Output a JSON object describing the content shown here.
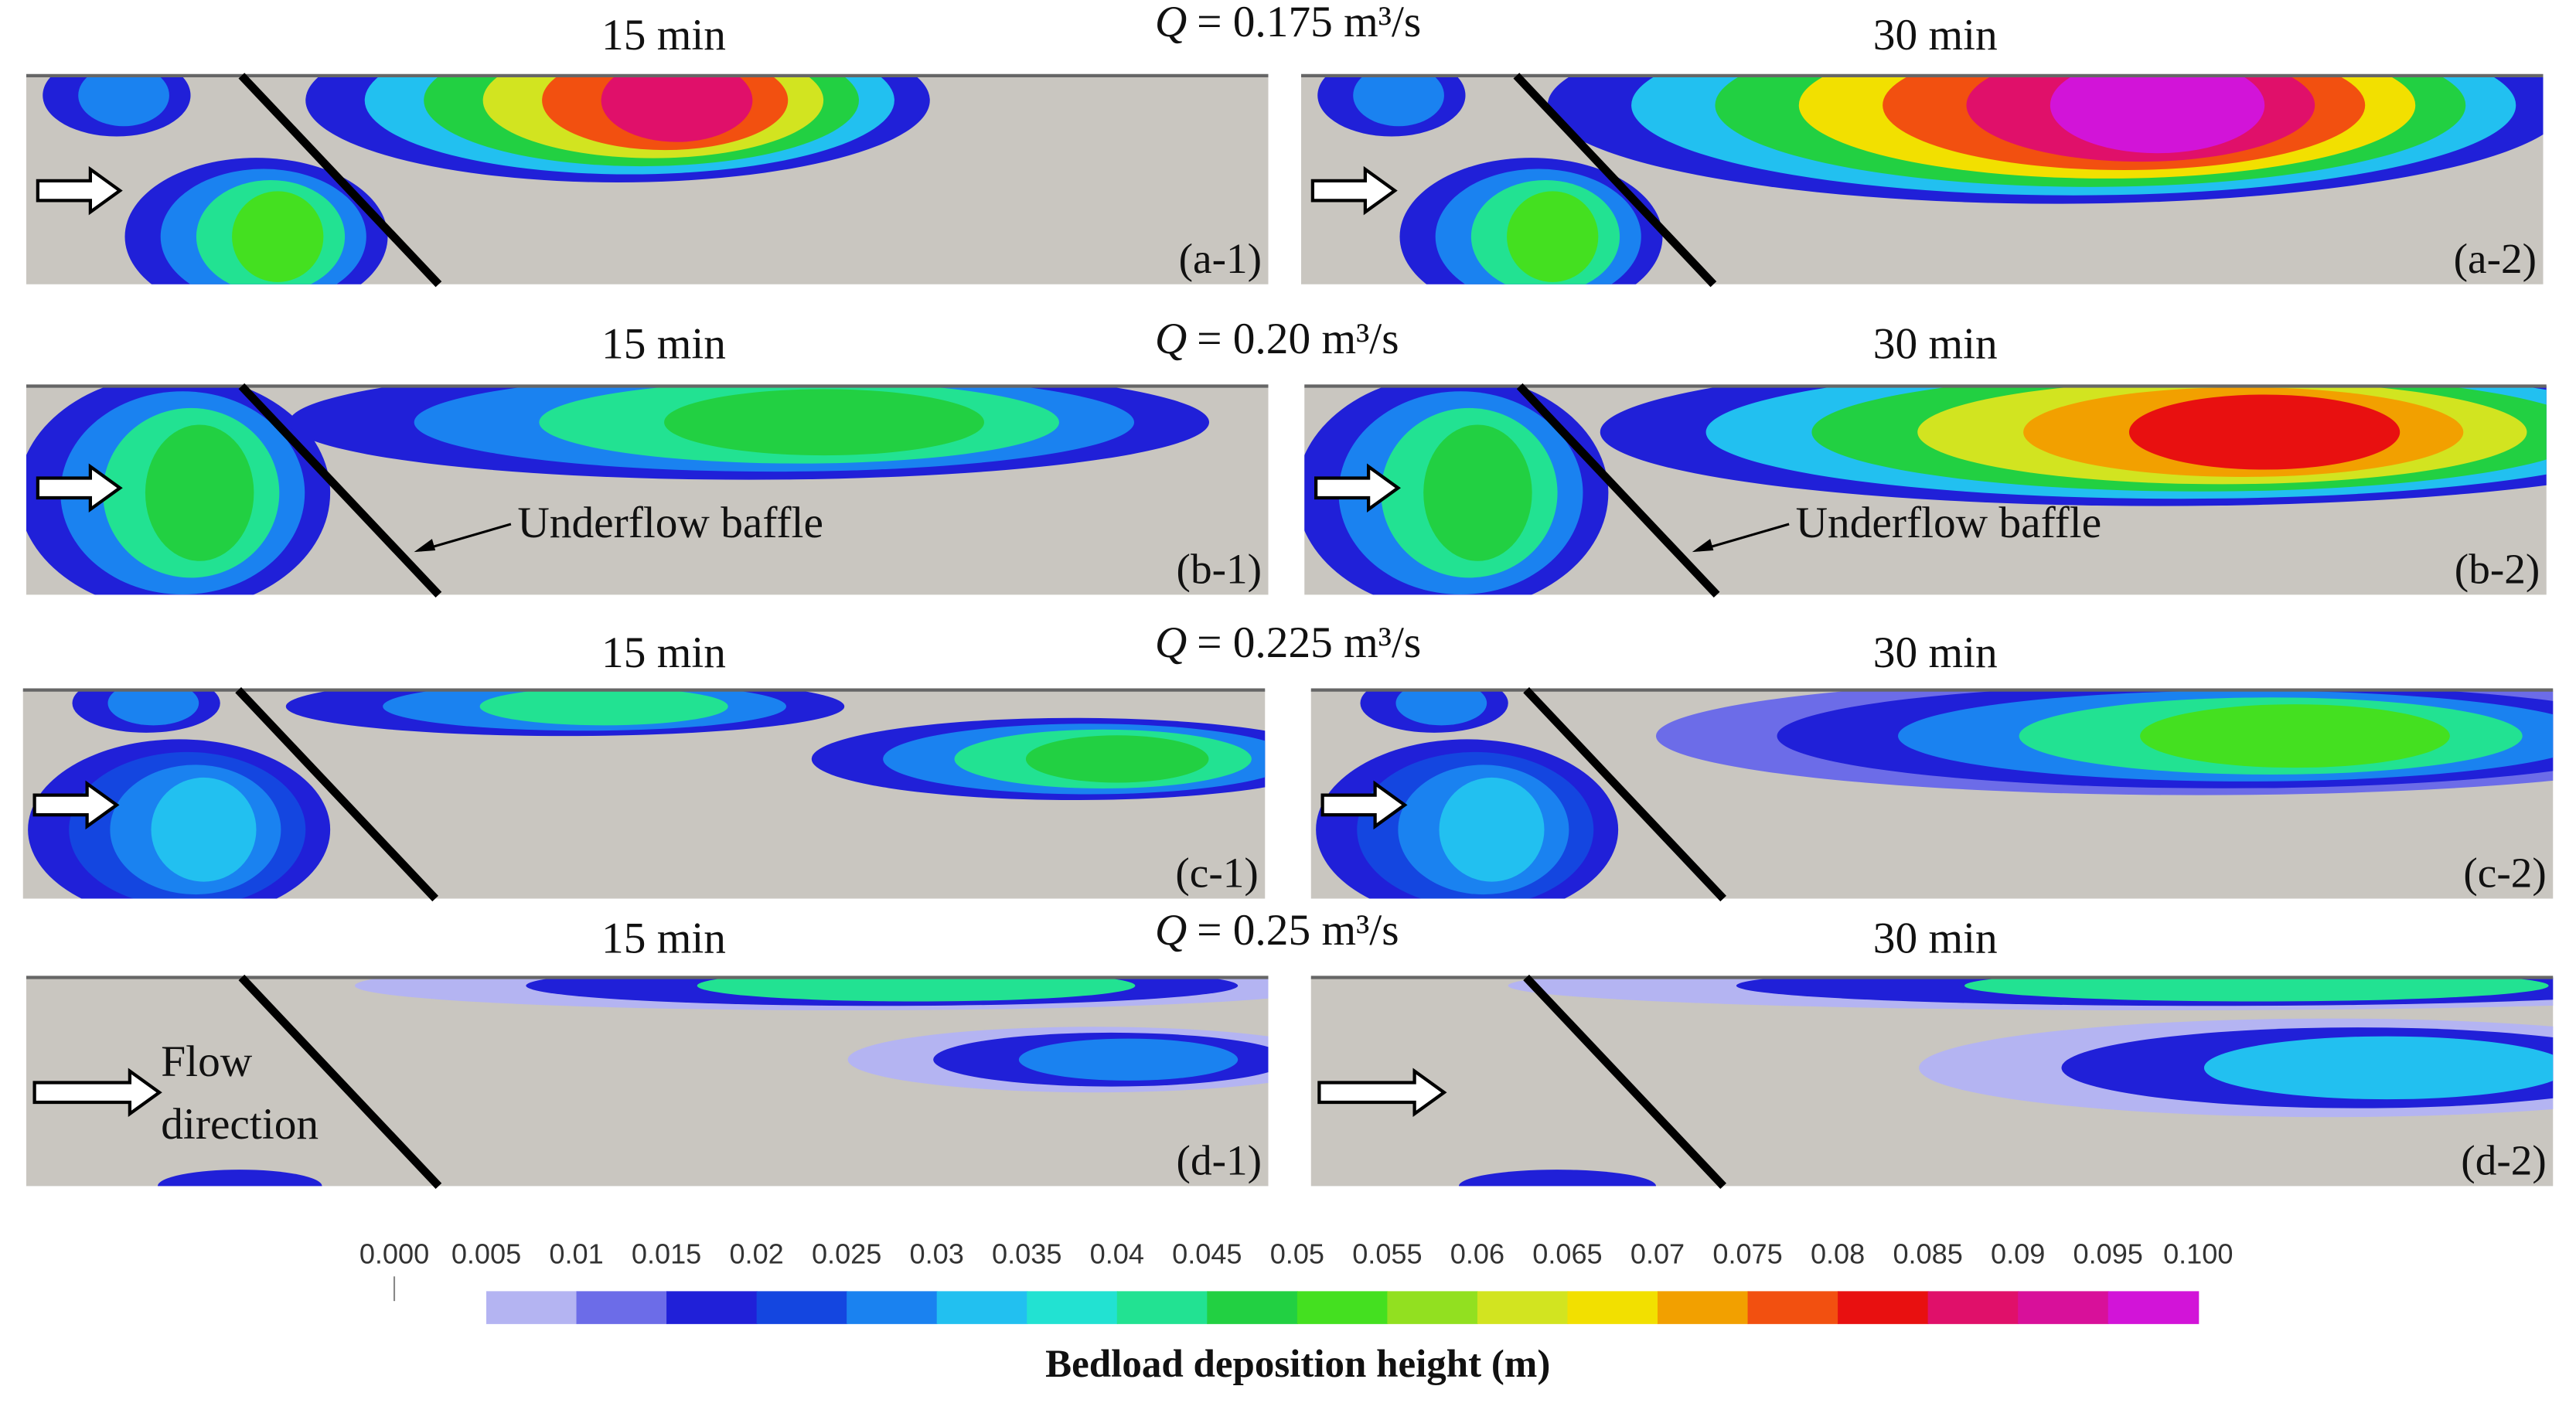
{
  "rows": [
    {
      "q": {
        "symbol": "Q",
        "text": "= 0.175 m³/s"
      },
      "panels": [
        {
          "time": "15 min",
          "label": "(a-1)"
        },
        {
          "time": "30 min",
          "label": "(a-2)"
        }
      ]
    },
    {
      "q": {
        "symbol": "Q",
        "text": "= 0.20 m³/s"
      },
      "panels": [
        {
          "time": "15 min",
          "label": "(b-1)",
          "annotation": "Underflow baffle"
        },
        {
          "time": "30 min",
          "label": "(b-2)",
          "annotation": "Underflow baffle"
        }
      ]
    },
    {
      "q": {
        "symbol": "Q",
        "text": "= 0.225 m³/s"
      },
      "panels": [
        {
          "time": "15 min",
          "label": "(c-1)"
        },
        {
          "time": "30 min",
          "label": "(c-2)"
        }
      ]
    },
    {
      "q": {
        "symbol": "Q",
        "text": "= 0.25 m³/s"
      },
      "panels": [
        {
          "time": "15 min",
          "label": "(d-1)",
          "annotation_lines": [
            "Flow",
            "direction"
          ]
        },
        {
          "time": "30 min",
          "label": "(d-2)"
        }
      ]
    }
  ],
  "colorbar": {
    "title": "Bedload deposition height (m)",
    "ticks": [
      "0.000",
      "0.005",
      "0.01",
      "0.015",
      "0.02",
      "0.025",
      "0.03",
      "0.035",
      "0.04",
      "0.045",
      "0.05",
      "0.055",
      "0.06",
      "0.065",
      "0.07",
      "0.075",
      "0.08",
      "0.085",
      "0.09",
      "0.095",
      "0.100"
    ],
    "colors": [
      "#b4b4f2",
      "#6c6ce8",
      "#2020d8",
      "#1446e0",
      "#1a82f0",
      "#22c0f0",
      "#22e2d2",
      "#22e292",
      "#22d042",
      "#44e020",
      "#92e020",
      "#d2e420",
      "#f2e000",
      "#f2a000",
      "#f25010",
      "#e81010",
      "#e0106a",
      "#d8109a",
      "#d214d8"
    ]
  }
}
